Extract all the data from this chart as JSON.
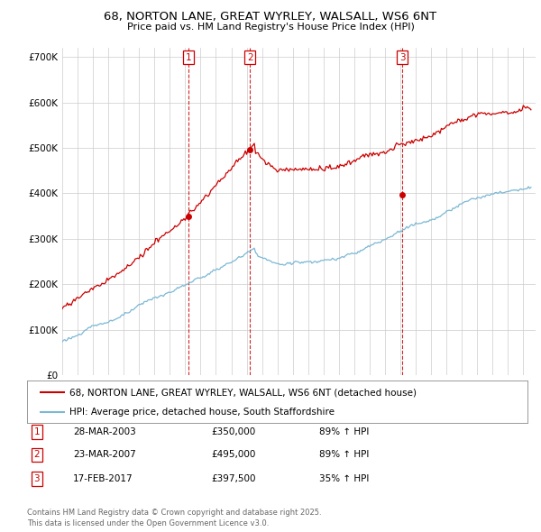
{
  "title_line1": "68, NORTON LANE, GREAT WYRLEY, WALSALL, WS6 6NT",
  "title_line2": "Price paid vs. HM Land Registry's House Price Index (HPI)",
  "ylim": [
    0,
    720000
  ],
  "xlim_start": 1995.0,
  "xlim_end": 2025.8,
  "yticks": [
    0,
    100000,
    200000,
    300000,
    400000,
    500000,
    600000,
    700000
  ],
  "ytick_labels": [
    "£0",
    "£100K",
    "£200K",
    "£300K",
    "£400K",
    "£500K",
    "£600K",
    "£700K"
  ],
  "sale_dates": [
    2003.23,
    2007.22,
    2017.12
  ],
  "sale_prices": [
    350000,
    495000,
    397500
  ],
  "sale_labels": [
    "1",
    "2",
    "3"
  ],
  "hpi_color": "#7bb8d4",
  "price_color": "#cc0000",
  "vline_color": "#cc0000",
  "legend_label_price": "68, NORTON LANE, GREAT WYRLEY, WALSALL, WS6 6NT (detached house)",
  "legend_label_hpi": "HPI: Average price, detached house, South Staffordshire",
  "table_entries": [
    [
      "1",
      "28-MAR-2003",
      "£350,000",
      "89% ↑ HPI"
    ],
    [
      "2",
      "23-MAR-2007",
      "£495,000",
      "89% ↑ HPI"
    ],
    [
      "3",
      "17-FEB-2017",
      "£397,500",
      "35% ↑ HPI"
    ]
  ],
  "footnote": "Contains HM Land Registry data © Crown copyright and database right 2025.\nThis data is licensed under the Open Government Licence v3.0.",
  "background_color": "#ffffff",
  "grid_color": "#cccccc"
}
